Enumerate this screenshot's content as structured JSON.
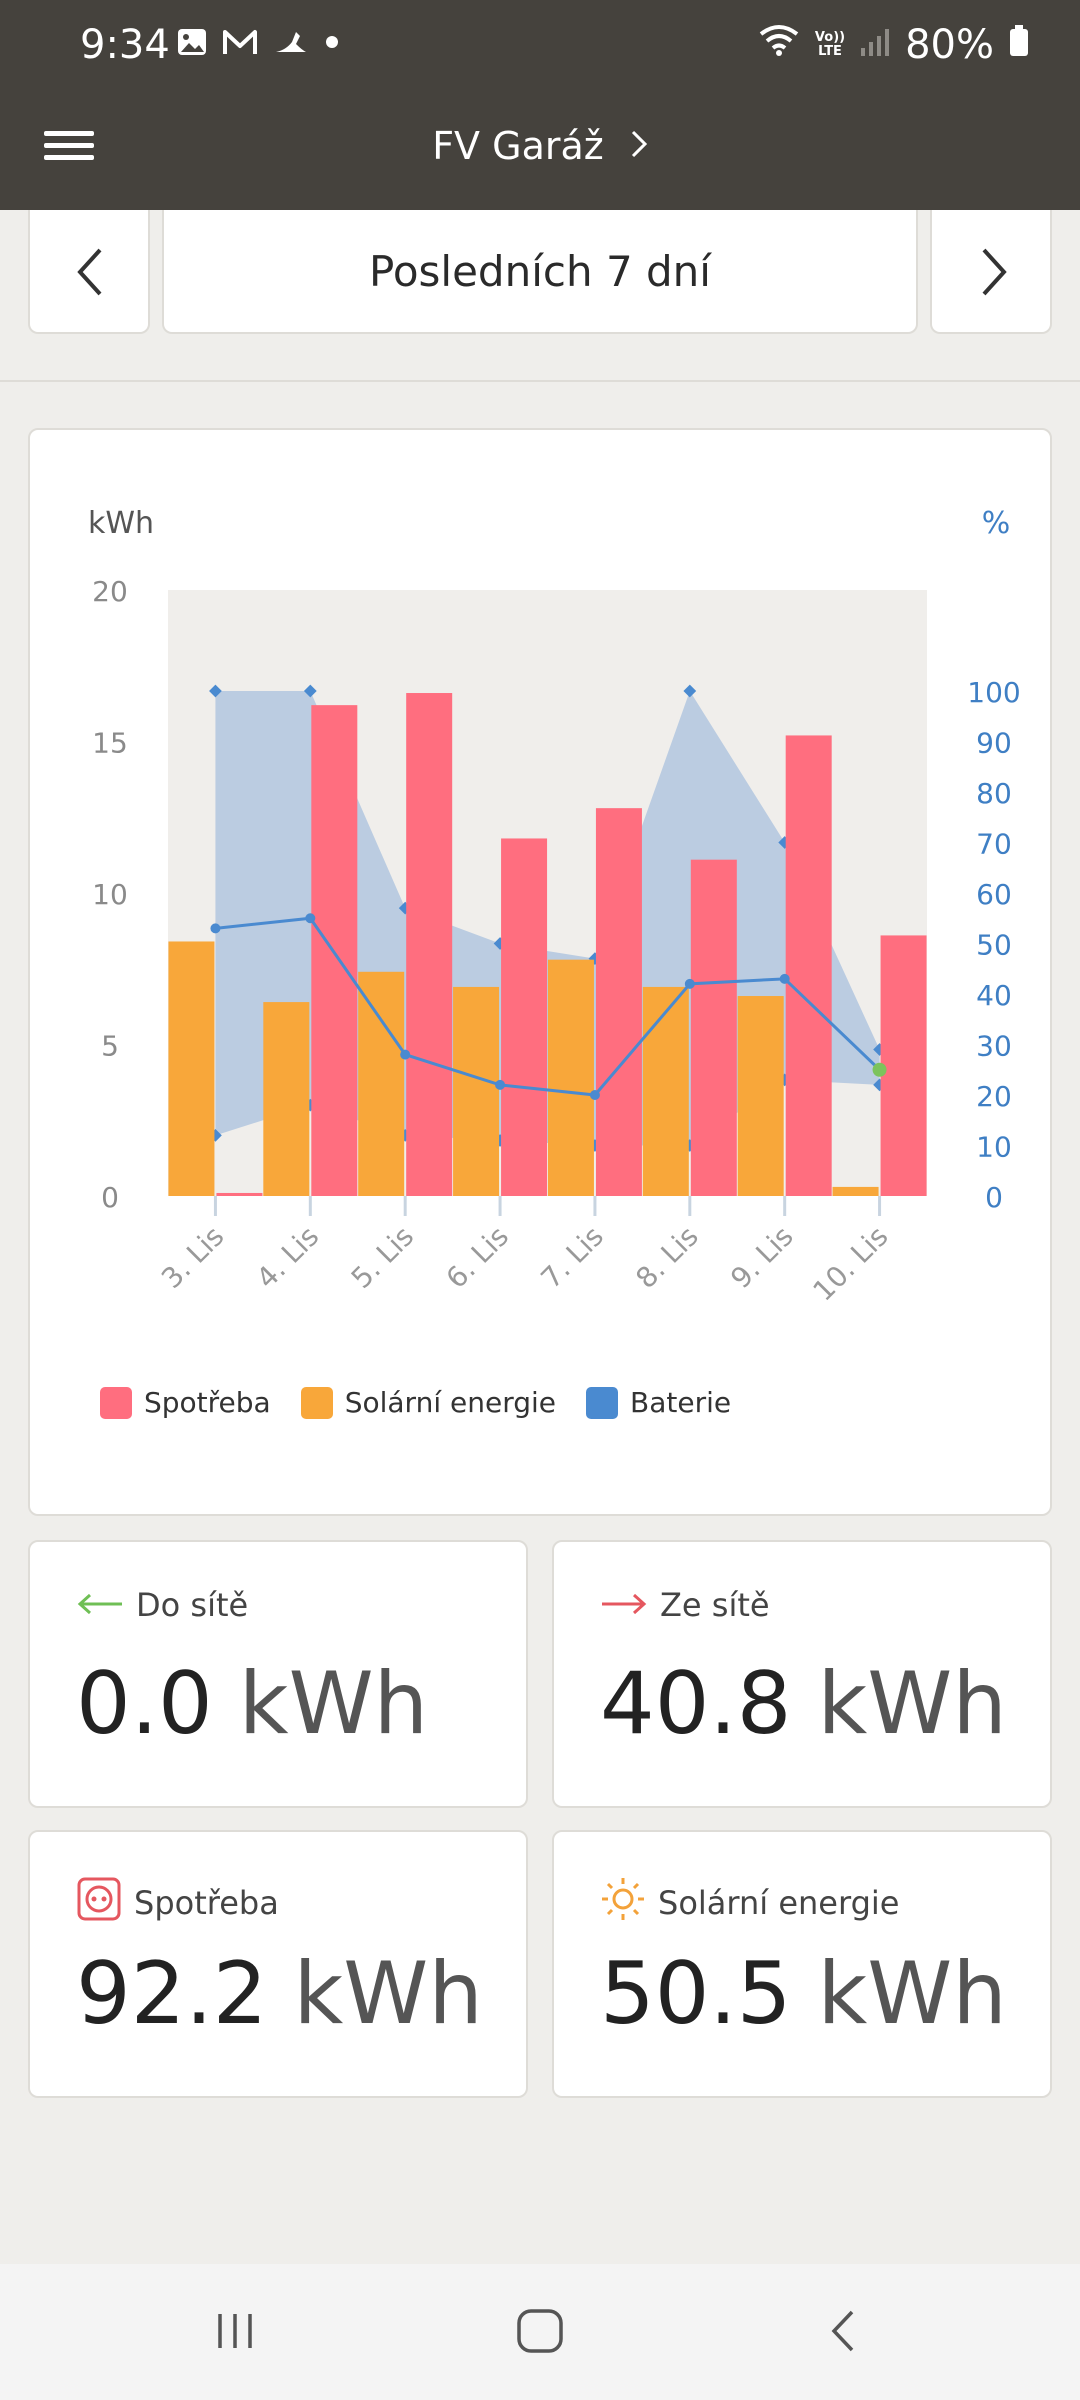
{
  "status_bar": {
    "time": "9:34",
    "left_icons": [
      "photo-icon",
      "mail-icon",
      "app-icon",
      "dot-icon"
    ],
    "right_icons": [
      "wifi-icon",
      "volte-icon",
      "signal-icon",
      "battery-icon"
    ],
    "volte_top": "Vo))",
    "volte_bottom": "LTE",
    "battery": "80%"
  },
  "app_bar": {
    "title": "FV Garáž"
  },
  "period": {
    "label": "Posledních 7 dní"
  },
  "chart_data": {
    "type": "bar",
    "categories": [
      "3. Lis",
      "4. Lis",
      "5. Lis",
      "6. Lis",
      "7. Lis",
      "8. Lis",
      "9. Lis",
      "10. Lis"
    ],
    "ylabel_left": "kWh",
    "ylabel_right": "%",
    "ylim_left": [
      0,
      20
    ],
    "ylim_right": [
      0,
      120
    ],
    "yticks_left": [
      0,
      5,
      10,
      15,
      20
    ],
    "yticks_right": [
      0,
      10,
      20,
      30,
      40,
      50,
      60,
      70,
      80,
      90,
      100
    ],
    "series": [
      {
        "name": "Spotřeba",
        "type": "bar",
        "color": "#ff6e7f",
        "values": [
          0.1,
          16.2,
          16.6,
          11.8,
          12.8,
          11.1,
          15.2,
          8.6
        ]
      },
      {
        "name": "Solární energie",
        "type": "bar",
        "color": "#f8a73a",
        "values": [
          8.4,
          6.4,
          7.4,
          6.9,
          7.8,
          6.9,
          6.6,
          0.3
        ]
      },
      {
        "name": "Baterie",
        "type": "line",
        "axis": "right",
        "color": "#4a8ad0",
        "values": [
          53,
          55,
          28,
          22,
          20,
          42,
          43,
          25
        ]
      },
      {
        "name": "Baterie max",
        "type": "band-upper",
        "axis": "right",
        "values": [
          100,
          100,
          57,
          50,
          47,
          100,
          70,
          29
        ]
      },
      {
        "name": "Baterie min",
        "type": "band-lower",
        "axis": "right",
        "values": [
          12,
          18,
          12,
          11,
          10,
          10,
          23,
          22
        ]
      }
    ],
    "current_marker": {
      "category": "10. Lis",
      "value": 25,
      "color": "#7cc35c"
    },
    "legend": [
      "Spotřeba",
      "Solární energie",
      "Baterie"
    ],
    "legend_colors": [
      "#ff6e7f",
      "#f8a73a",
      "#4a8ad0"
    ],
    "legend_placement": "bottom-left"
  },
  "stats": [
    {
      "label": "Do sítě",
      "value": "0.0",
      "unit": "kWh",
      "icon": "arrow-left-icon"
    },
    {
      "label": "Ze sítě",
      "value": "40.8",
      "unit": "kWh",
      "icon": "arrow-right-icon"
    },
    {
      "label": "Spotřeba",
      "value": "92.2",
      "unit": "kWh",
      "icon": "socket-icon"
    },
    {
      "label": "Solární energie",
      "value": "50.5",
      "unit": "kWh",
      "icon": "sun-icon"
    }
  ],
  "nav_bar": {
    "icons": [
      "recent-apps-icon",
      "home-icon",
      "back-icon"
    ]
  }
}
